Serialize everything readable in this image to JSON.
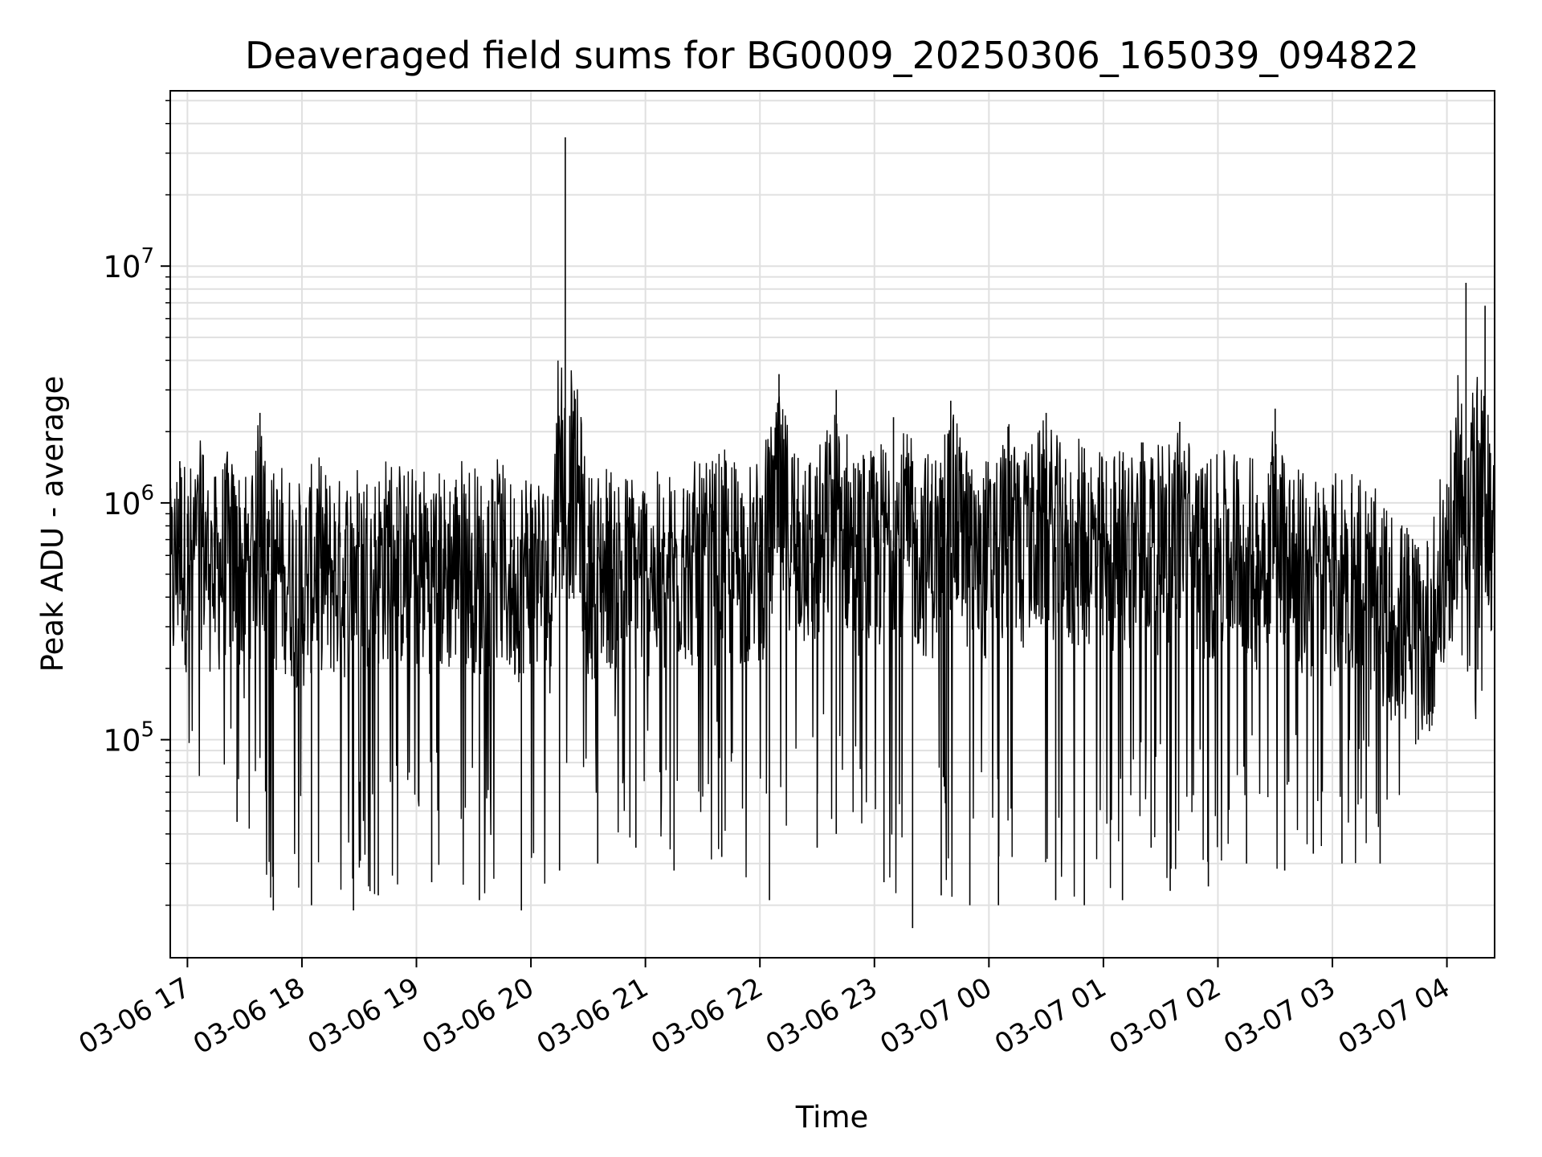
{
  "chart_data": {
    "type": "line",
    "title": "Deaveraged field sums for BG0009_20250306_165039_094822",
    "xlabel": "Time",
    "ylabel": "Peak ADU - average",
    "yscale": "log",
    "ylim": [
      12000,
      55000000
    ],
    "xlim": [
      "2025-03-06 16:51:00",
      "2025-03-07 04:25:00"
    ],
    "grid": true,
    "legend": "none",
    "line_color": "#000000",
    "grid_color": "#e0e0e0",
    "x_ticks": [
      {
        "t": "2025-03-06 17:00",
        "label": "03-06 17"
      },
      {
        "t": "2025-03-06 18:00",
        "label": "03-06 18"
      },
      {
        "t": "2025-03-06 19:00",
        "label": "03-06 19"
      },
      {
        "t": "2025-03-06 20:00",
        "label": "03-06 20"
      },
      {
        "t": "2025-03-06 21:00",
        "label": "03-06 21"
      },
      {
        "t": "2025-03-06 22:00",
        "label": "03-06 22"
      },
      {
        "t": "2025-03-06 23:00",
        "label": "03-06 23"
      },
      {
        "t": "2025-03-07 00:00",
        "label": "03-07 00"
      },
      {
        "t": "2025-03-07 01:00",
        "label": "03-07 01"
      },
      {
        "t": "2025-03-07 02:00",
        "label": "03-07 02"
      },
      {
        "t": "2025-03-07 03:00",
        "label": "03-07 03"
      },
      {
        "t": "2025-03-07 04:00",
        "label": "03-07 04"
      }
    ],
    "y_ticks": [
      {
        "value": 100000,
        "base": "10",
        "exp": "5"
      },
      {
        "value": 1000000,
        "base": "10",
        "exp": "6"
      },
      {
        "value": 10000000,
        "base": "10",
        "exp": "7"
      }
    ],
    "series": [
      {
        "x": [
          "2025-03-06 16:51",
          "2025-03-06 16:56",
          "2025-03-06 17:00",
          "2025-03-06 17:08",
          "2025-03-06 17:14",
          "2025-03-06 17:20",
          "2025-03-06 17:30",
          "2025-03-06 17:38",
          "2025-03-06 17:43",
          "2025-03-06 17:50",
          "2025-03-06 18:00",
          "2025-03-06 18:08",
          "2025-03-06 18:12",
          "2025-03-06 18:20",
          "2025-03-06 18:30",
          "2025-03-06 18:38",
          "2025-03-06 18:46",
          "2025-03-06 18:55",
          "2025-03-06 19:05",
          "2025-03-06 19:15",
          "2025-03-06 19:25",
          "2025-03-06 19:35",
          "2025-03-06 19:40",
          "2025-03-06 19:50",
          "2025-03-06 20:00",
          "2025-03-06 20:10",
          "2025-03-06 20:18",
          "2025-03-06 20:30",
          "2025-03-06 20:40",
          "2025-03-06 20:50",
          "2025-03-06 21:00",
          "2025-03-06 21:10",
          "2025-03-06 21:20",
          "2025-03-06 21:30",
          "2025-03-06 21:40",
          "2025-03-06 21:50",
          "2025-03-06 22:00",
          "2025-03-06 22:10",
          "2025-03-06 22:20",
          "2025-03-06 22:30",
          "2025-03-06 22:40",
          "2025-03-06 22:50",
          "2025-03-06 23:00",
          "2025-03-06 23:10",
          "2025-03-06 23:20",
          "2025-03-06 23:30",
          "2025-03-06 23:40",
          "2025-03-06 23:50",
          "2025-03-07 00:00",
          "2025-03-07 00:10",
          "2025-03-07 00:20",
          "2025-03-07 00:30",
          "2025-03-07 00:40",
          "2025-03-07 00:50",
          "2025-03-07 01:00",
          "2025-03-07 01:10",
          "2025-03-07 01:20",
          "2025-03-07 01:30",
          "2025-03-07 01:40",
          "2025-03-07 01:50",
          "2025-03-07 02:00",
          "2025-03-07 02:10",
          "2025-03-07 02:20",
          "2025-03-07 02:30",
          "2025-03-07 02:40",
          "2025-03-07 02:50",
          "2025-03-07 03:00",
          "2025-03-07 03:10",
          "2025-03-07 03:20",
          "2025-03-07 03:30",
          "2025-03-07 03:40",
          "2025-03-07 03:50",
          "2025-03-07 04:00",
          "2025-03-07 04:10",
          "2025-03-07 04:20",
          "2025-03-07 04:25"
        ],
        "y": [
          550000,
          1500000,
          900000,
          1600000,
          750000,
          1250000,
          900000,
          2400000,
          850000,
          1000000,
          650000,
          1150000,
          900000,
          750000,
          1100000,
          900000,
          1250000,
          900000,
          1000000,
          850000,
          1200000,
          800000,
          1250000,
          700000,
          1100000,
          650000,
          35000000,
          800000,
          1050000,
          850000,
          900000,
          750000,
          1150000,
          900000,
          1250000,
          1050000,
          1050000,
          3500000,
          1550000,
          1300000,
          3000000,
          1400000,
          1200000,
          2300000,
          1500000,
          1200000,
          2700000,
          1300000,
          1100000,
          2100000,
          1300000,
          2400000,
          1200000,
          1700000,
          1150000,
          1500000,
          1800000,
          1300000,
          2200000,
          1300000,
          1100000,
          1500000,
          1000000,
          2500000,
          900000,
          800000,
          750000,
          1100000,
          650000,
          400000,
          300000,
          250000,
          1200000,
          8500000,
          6800000,
          1000000
        ]
      },
      {
        "x": [
          "2025-03-06 17:26",
          "2025-03-06 17:45",
          "2025-03-06 18:05",
          "2025-03-06 18:27",
          "2025-03-06 18:40",
          "2025-03-06 19:08",
          "2025-03-06 19:33",
          "2025-03-06 19:55",
          "2025-03-06 20:15",
          "2025-03-06 20:35",
          "2025-03-06 20:55",
          "2025-03-06 21:15",
          "2025-03-06 21:40",
          "2025-03-06 22:05",
          "2025-03-06 22:30",
          "2025-03-06 22:40",
          "2025-03-06 23:05",
          "2025-03-06 23:20",
          "2025-03-06 23:35",
          "2025-03-06 23:50",
          "2025-03-07 00:05",
          "2025-03-07 00:35",
          "2025-03-07 00:50",
          "2025-03-07 01:10",
          "2025-03-07 01:25",
          "2025-03-07 01:35",
          "2025-03-07 01:55",
          "2025-03-07 02:15",
          "2025-03-07 02:35",
          "2025-03-07 02:50",
          "2025-03-07 03:05",
          "2025-03-07 03:25",
          "2025-03-07 03:45"
        ],
        "y": [
          45000,
          19000,
          20000,
          19000,
          22000,
          25000,
          21000,
          19000,
          28000,
          30000,
          35000,
          28000,
          32000,
          21000,
          35000,
          40000,
          25000,
          16000,
          22000,
          20000,
          20000,
          21000,
          20000,
          21000,
          35000,
          23000,
          24000,
          30000,
          28000,
          33000,
          30000,
          30000,
          100000
        ]
      }
    ]
  }
}
